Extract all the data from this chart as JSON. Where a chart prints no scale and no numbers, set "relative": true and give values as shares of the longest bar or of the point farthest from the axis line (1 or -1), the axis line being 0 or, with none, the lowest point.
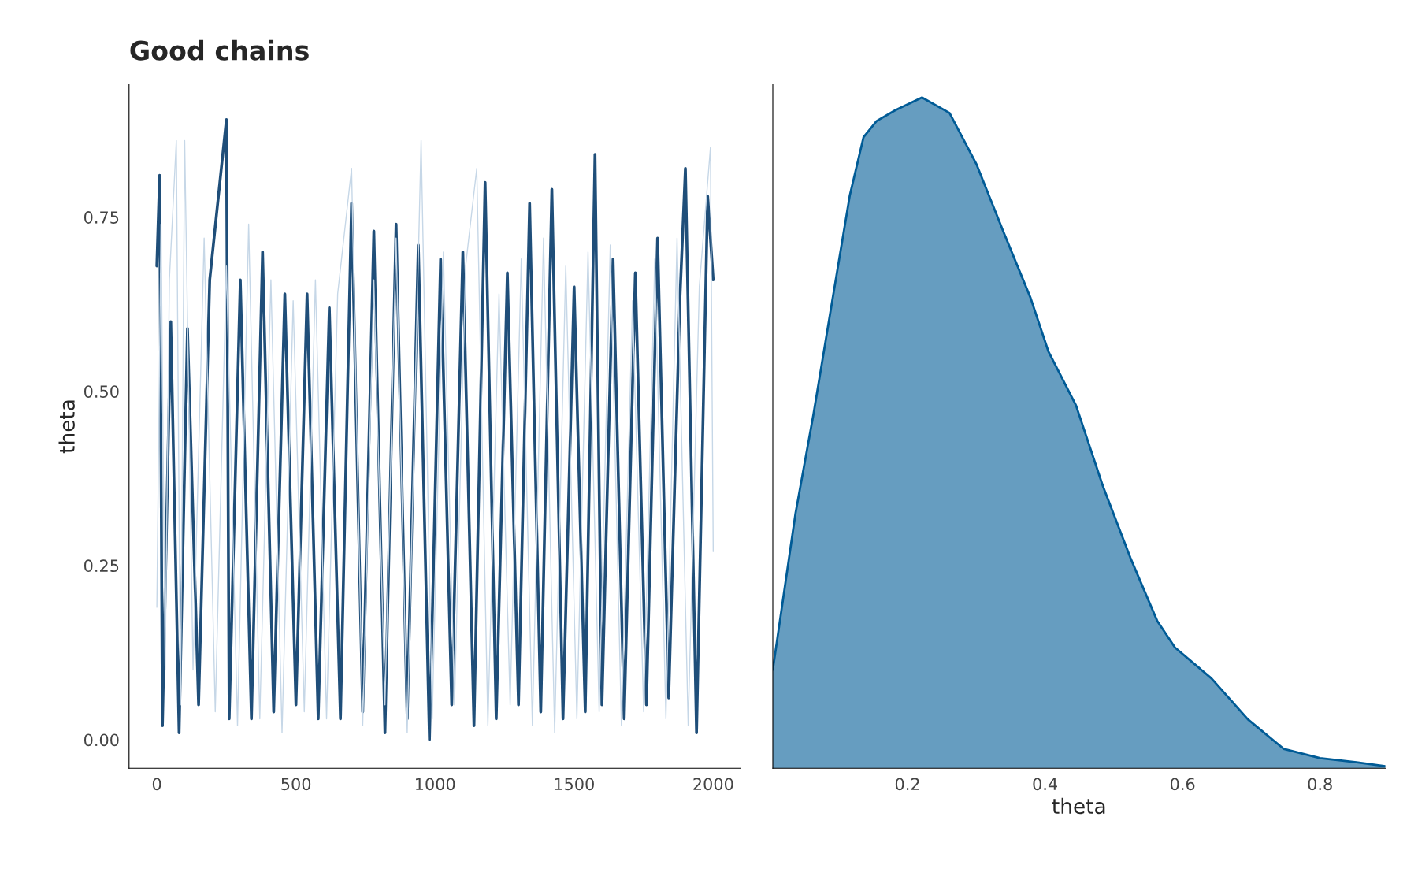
{
  "chart_data": [
    {
      "type": "line",
      "title": "Good chains",
      "ylabel": "theta",
      "xlim": [
        -100,
        2097
      ],
      "xticks": [
        0,
        500,
        1000,
        1500,
        2000
      ],
      "ylim": [
        -0.041,
        0.941
      ],
      "yticks": [
        {
          "value": 0,
          "label": "0.00"
        },
        {
          "value": 0.25,
          "label": "0.25"
        },
        {
          "value": 0.5,
          "label": "0.50"
        },
        {
          "value": 0.75,
          "label": "0.75"
        }
      ],
      "grid": false,
      "legend": false,
      "series": [
        {
          "color": "#1f4e79",
          "x": [
            0,
            10,
            20,
            50,
            80,
            110,
            150,
            190,
            250,
            260,
            300,
            340,
            380,
            420,
            460,
            500,
            540,
            580,
            620,
            660,
            700,
            740,
            780,
            820,
            860,
            900,
            940,
            980,
            1020,
            1060,
            1100,
            1140,
            1180,
            1220,
            1260,
            1300,
            1340,
            1380,
            1420,
            1460,
            1500,
            1540,
            1575,
            1600,
            1640,
            1680,
            1720,
            1760,
            1800,
            1840,
            1880,
            1900,
            1940,
            1980,
            2000
          ],
          "values": [
            0.68,
            0.81,
            0.02,
            0.6,
            0.01,
            0.59,
            0.05,
            0.66,
            0.89,
            0.03,
            0.66,
            0.03,
            0.7,
            0.04,
            0.64,
            0.05,
            0.64,
            0.03,
            0.62,
            0.03,
            0.77,
            0.04,
            0.73,
            0.01,
            0.74,
            0.03,
            0.71,
            0.0,
            0.69,
            0.05,
            0.7,
            0.02,
            0.8,
            0.03,
            0.67,
            0.05,
            0.77,
            0.04,
            0.79,
            0.03,
            0.65,
            0.04,
            0.84,
            0.05,
            0.69,
            0.03,
            0.67,
            0.05,
            0.72,
            0.06,
            0.63,
            0.82,
            0.01,
            0.78,
            0.66
          ]
        },
        {
          "color": "#c6d7e7",
          "x": [
            0,
            15,
            30,
            45,
            70,
            85,
            100,
            130,
            170,
            210,
            250,
            290,
            330,
            370,
            410,
            450,
            490,
            530,
            570,
            610,
            650,
            700,
            740,
            780,
            820,
            860,
            900,
            950,
            990,
            1030,
            1070,
            1110,
            1150,
            1190,
            1230,
            1270,
            1310,
            1350,
            1390,
            1430,
            1470,
            1510,
            1550,
            1590,
            1630,
            1670,
            1710,
            1750,
            1790,
            1830,
            1870,
            1910,
            1950,
            1990,
            2000
          ],
          "values": [
            0.19,
            0.74,
            0.1,
            0.66,
            0.86,
            0.05,
            0.86,
            0.1,
            0.72,
            0.04,
            0.68,
            0.02,
            0.74,
            0.03,
            0.66,
            0.01,
            0.63,
            0.04,
            0.66,
            0.03,
            0.64,
            0.82,
            0.02,
            0.66,
            0.05,
            0.72,
            0.01,
            0.86,
            0.03,
            0.7,
            0.05,
            0.68,
            0.82,
            0.02,
            0.64,
            0.05,
            0.69,
            0.02,
            0.72,
            0.01,
            0.68,
            0.03,
            0.7,
            0.04,
            0.71,
            0.02,
            0.63,
            0.04,
            0.69,
            0.03,
            0.72,
            0.02,
            0.65,
            0.85,
            0.27
          ]
        }
      ]
    },
    {
      "type": "area",
      "xlabel": "theta",
      "relative": true,
      "xlim": [
        0.004,
        0.895
      ],
      "xticks": [
        0.2,
        0.4,
        0.6,
        0.8
      ],
      "grid": false,
      "legend": false,
      "tick_labels": "x",
      "series": [
        {
          "color": "#005b96",
          "x": [
            0.004,
            0.037,
            0.063,
            0.089,
            0.116,
            0.136,
            0.155,
            0.182,
            0.221,
            0.261,
            0.3,
            0.339,
            0.379,
            0.405,
            0.445,
            0.484,
            0.524,
            0.563,
            0.589,
            0.642,
            0.695,
            0.747,
            0.8,
            0.853,
            0.895
          ],
          "values": [
            0.147,
            0.38,
            0.527,
            0.688,
            0.854,
            0.941,
            0.965,
            0.981,
            1.0,
            0.977,
            0.901,
            0.801,
            0.701,
            0.621,
            0.541,
            0.421,
            0.314,
            0.22,
            0.18,
            0.134,
            0.073,
            0.029,
            0.015,
            0.009,
            0.003
          ]
        }
      ]
    }
  ]
}
